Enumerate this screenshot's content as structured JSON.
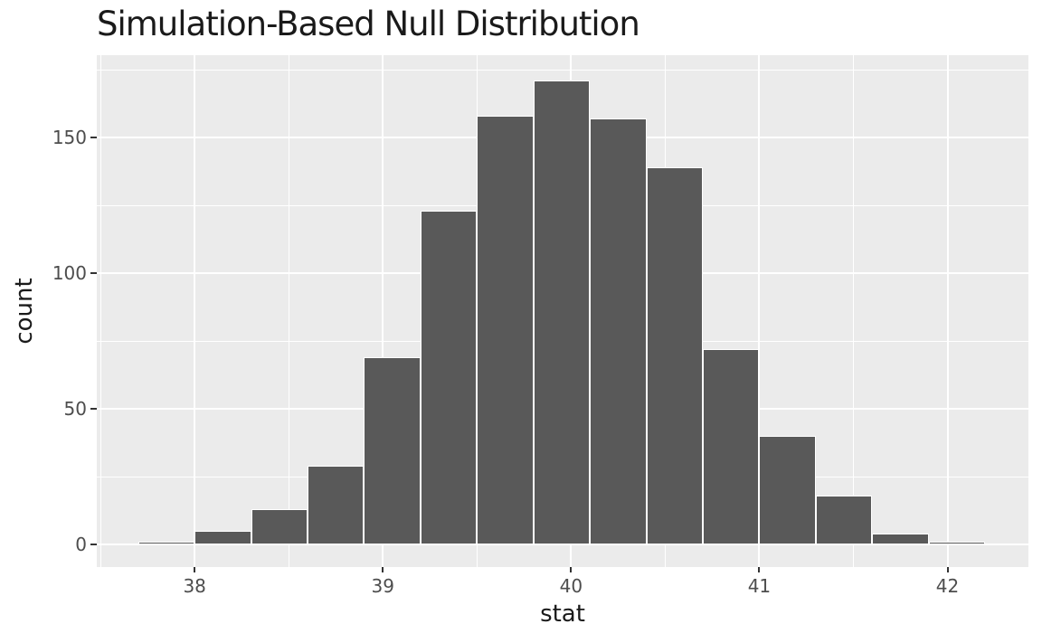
{
  "chart_data": {
    "type": "bar",
    "subtype": "histogram",
    "title": "Simulation-Based Null Distribution",
    "xlabel": "stat",
    "ylabel": "count",
    "bin_start": 37.7,
    "bin_width": 0.3,
    "bin_left_edges": [
      37.7,
      38.0,
      38.3,
      38.6,
      38.9,
      39.2,
      39.5,
      39.8,
      40.1,
      40.4,
      40.7,
      41.0,
      41.3,
      41.6,
      41.9
    ],
    "counts": [
      1,
      5,
      13,
      29,
      69,
      123,
      158,
      171,
      157,
      139,
      72,
      40,
      18,
      4,
      1
    ],
    "total_simulations": 1000,
    "x_ticks": [
      38,
      39,
      40,
      41,
      42
    ],
    "y_ticks": [
      0,
      50,
      100,
      150
    ],
    "x_minor_ticks": [
      37.5,
      38.5,
      39.5,
      40.5,
      41.5
    ],
    "y_minor_ticks": [
      25,
      75,
      125,
      175
    ],
    "xlim": [
      37.48,
      42.43
    ],
    "ylim": [
      -8.41,
      180.4
    ],
    "grid": true,
    "legend": false,
    "colors": {
      "bar_fill": "#595959",
      "bar_border": "#FFFFFF",
      "panel_bg": "#EBEBEB",
      "grid_major": "#FFFFFF",
      "grid_minor": "#FFFFFF",
      "tick_mark": "#333333",
      "tick_label": "#4D4D4D",
      "axis_title": "#1A1A1A",
      "title": "#1A1A1A",
      "figure_bg": "#FFFFFF"
    }
  }
}
